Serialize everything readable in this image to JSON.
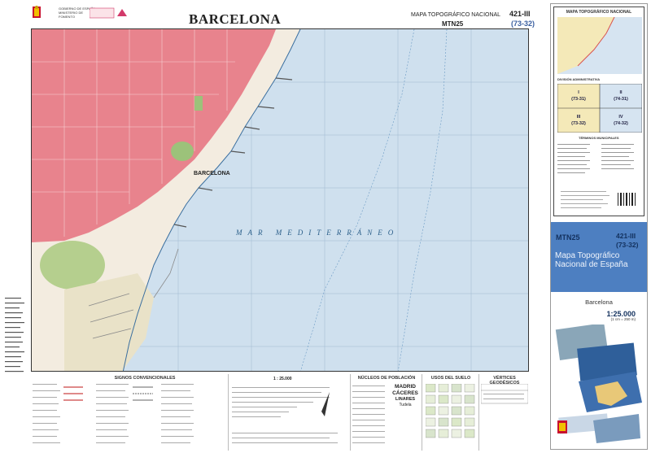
{
  "header": {
    "ministry": "GOBIERNO DE ESPAÑA  MINISTERIO DE FOMENTO",
    "institute": "INSTITUTO GEOGRÁFICO NACIONAL",
    "title": "BARCELONA",
    "subtitle": "MAPA TOPOGRÁFICO NACIONAL",
    "series": "MTN25",
    "sheet_number": "421-III",
    "sheet_grid": "(73-32)"
  },
  "map": {
    "city_label": "BARCELONA",
    "sea_label": "MAR  MEDITERRÁNEO",
    "colors": {
      "sea": "#cfe0ee",
      "urban": "#e8838d",
      "park": "#9cc27a",
      "port": "#e9e2c8"
    }
  },
  "legend": {
    "signs_heading": "SIGNOS CONVENCIONALES",
    "scale_label": "1 : 25.000",
    "population_heading": "NÚCLEOS DE POBLACIÓN",
    "population_example": [
      "MADRID",
      "CÁCERES",
      "LINARES",
      "Tudela"
    ],
    "land_use_heading": "USOS DEL SUELO",
    "geodesic_heading": "VÉRTICES GEODÉSICOS"
  },
  "cover": {
    "distribution_title": "MAPA TOPOGRÁFICO NACIONAL",
    "admin_title": "DIVISIÓN ADMINISTRATIVA",
    "quadrants": [
      "I",
      "II",
      "III",
      "IV"
    ],
    "quadrant_codes": [
      "(73-31)",
      "(74-31)",
      "(73-32)",
      "(74-32)"
    ],
    "municipal_title": "TÉRMINOS MUNICIPALES",
    "series": "MTN25",
    "sheet_number": "421-III",
    "sheet_grid": "(73-32)",
    "name": "Mapa Topográfico Nacional de España",
    "place": "Barcelona",
    "scale": "1:25.000",
    "ratio": "(1 cm = 250 m)"
  }
}
